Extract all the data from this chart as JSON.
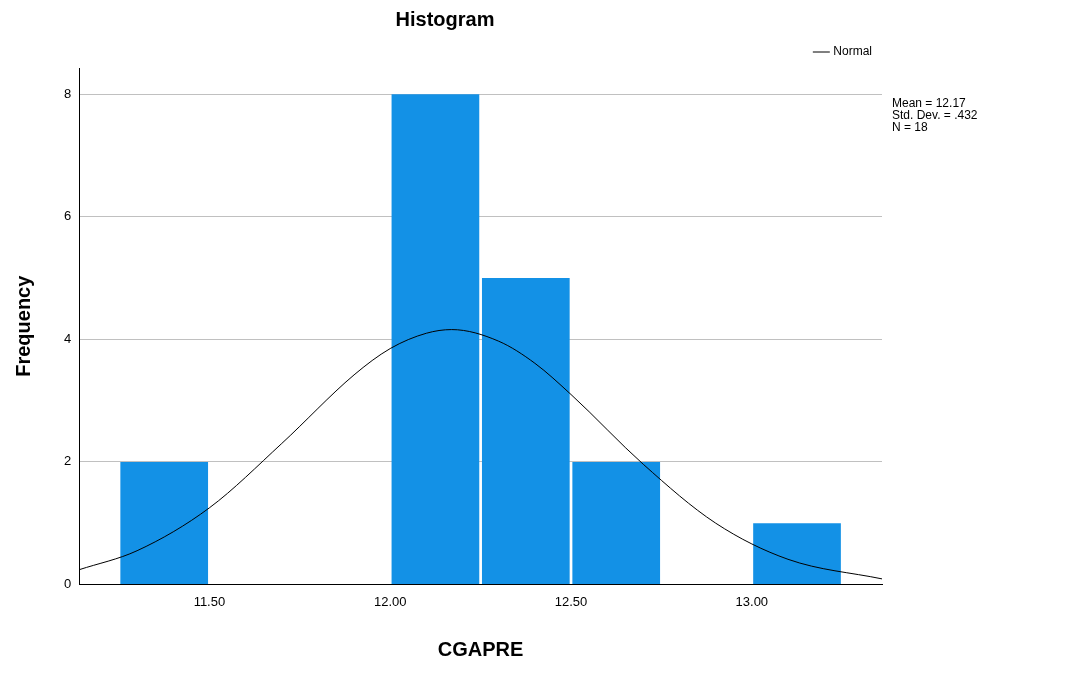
{
  "chart_data": {
    "type": "histogram",
    "title": "Histogram",
    "xlabel": "CGAPRE",
    "ylabel": "Frequency",
    "bins": [
      11.25,
      11.5,
      11.75,
      12.0,
      12.25,
      12.5,
      12.75,
      13.0,
      13.25
    ],
    "values": [
      2,
      0,
      0,
      8,
      5,
      2,
      0,
      1
    ],
    "color": "#1391e6",
    "series": [
      {
        "type": "line",
        "name": "Normal",
        "color": "#000000",
        "x": [
          11.14,
          11.3,
          11.5,
          11.7,
          11.9,
          12.0,
          12.1,
          12.17,
          12.3,
          12.4,
          12.5,
          12.7,
          12.9,
          13.1,
          13.36
        ],
        "values": [
          0.24,
          0.55,
          1.25,
          2.3,
          3.42,
          3.85,
          4.1,
          4.16,
          3.97,
          3.61,
          3.1,
          1.96,
          1.0,
          0.41,
          0.09
        ]
      }
    ],
    "xlim": [
      11.14,
      13.36
    ],
    "xticks": [
      {
        "value": 11.5,
        "label": "11.50"
      },
      {
        "value": 12.0,
        "label": "12.00"
      },
      {
        "value": 12.5,
        "label": "12.50"
      },
      {
        "value": 13.0,
        "label": "13.00"
      }
    ],
    "ylim": [
      0,
      8.43
    ],
    "yticks": [
      0,
      2,
      4,
      6,
      8
    ],
    "grid": "y",
    "legend": "top right",
    "annotations": [
      "Mean = 12.17",
      "Std. Dev. = .432",
      "N = 18"
    ]
  }
}
